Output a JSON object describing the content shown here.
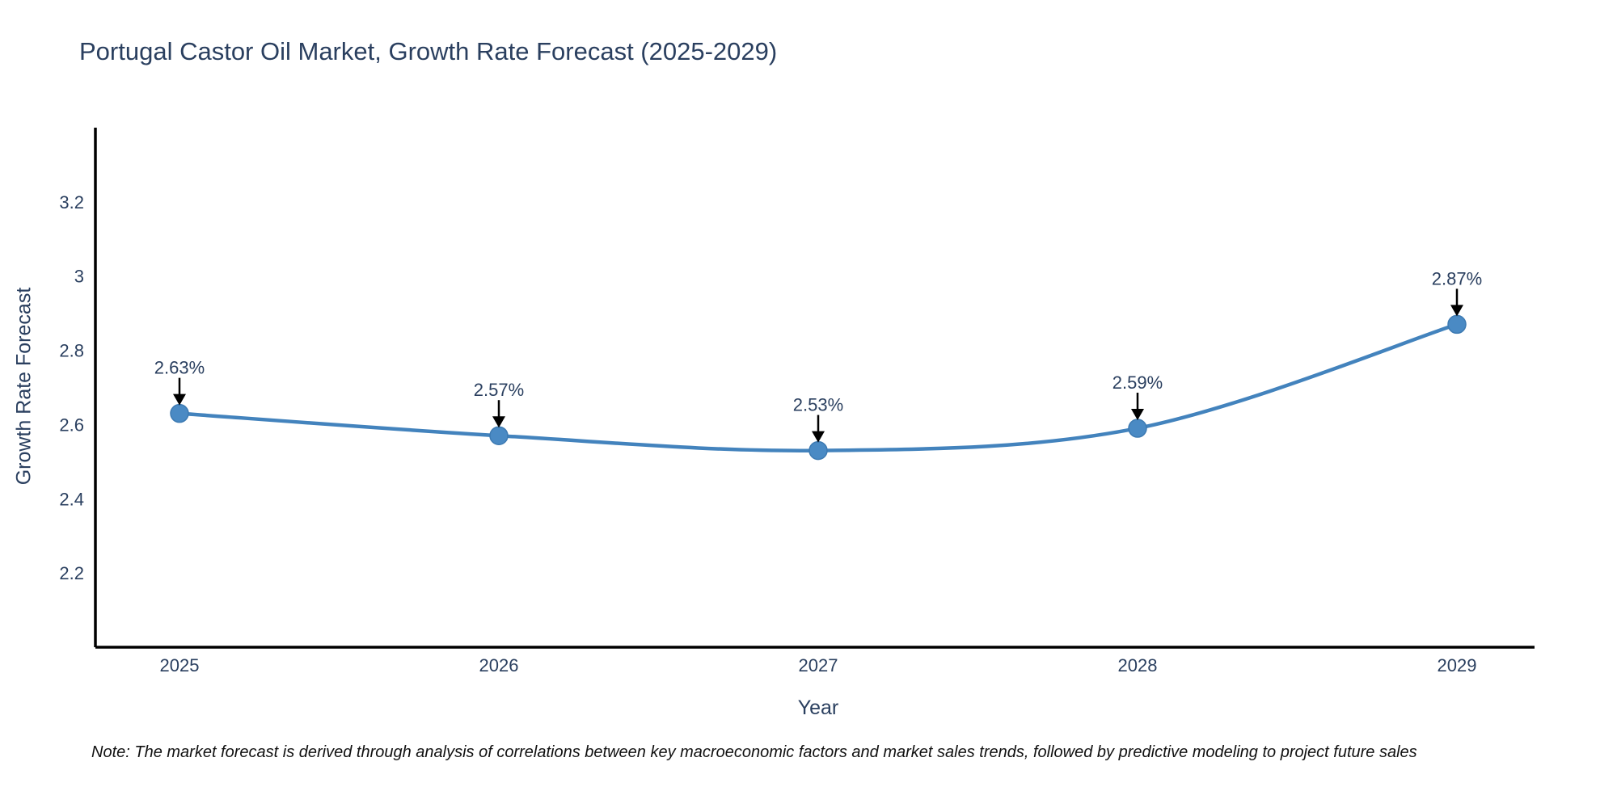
{
  "chart_data": {
    "type": "line",
    "title": "Portugal Castor Oil Market, Growth Rate Forecast (2025-2029)",
    "xlabel": "Year",
    "ylabel": "Growth Rate Forecast",
    "categories": [
      "2025",
      "2026",
      "2027",
      "2028",
      "2029"
    ],
    "series": [
      {
        "name": "Growth Rate Forecast",
        "values": [
          2.63,
          2.57,
          2.53,
          2.59,
          2.87
        ],
        "point_labels": [
          "2.63%",
          "2.57%",
          "2.53%",
          "2.59%",
          "2.87%"
        ]
      }
    ],
    "y_ticks": [
      2.2,
      2.4,
      2.6,
      2.8,
      3,
      3.2
    ],
    "y_tick_labels": [
      "2.2",
      "2.4",
      "2.6",
      "2.8",
      "3",
      "3.2"
    ],
    "ylim": [
      2.0,
      3.4
    ],
    "line_shape": "spline",
    "grid": false,
    "legend": "none",
    "colors": {
      "line": "#4383bd",
      "marker_fill": "#4a8ac4",
      "marker_stroke": "#3d7ab2",
      "axis_line": "#000000",
      "text": "#2a3f5f",
      "annotation_arrow": "#000000",
      "background": "#ffffff"
    }
  },
  "note": "Note: The market forecast is derived through analysis of correlations between key macroeconomic factors and market sales trends, followed by predictive modeling to project future sales"
}
